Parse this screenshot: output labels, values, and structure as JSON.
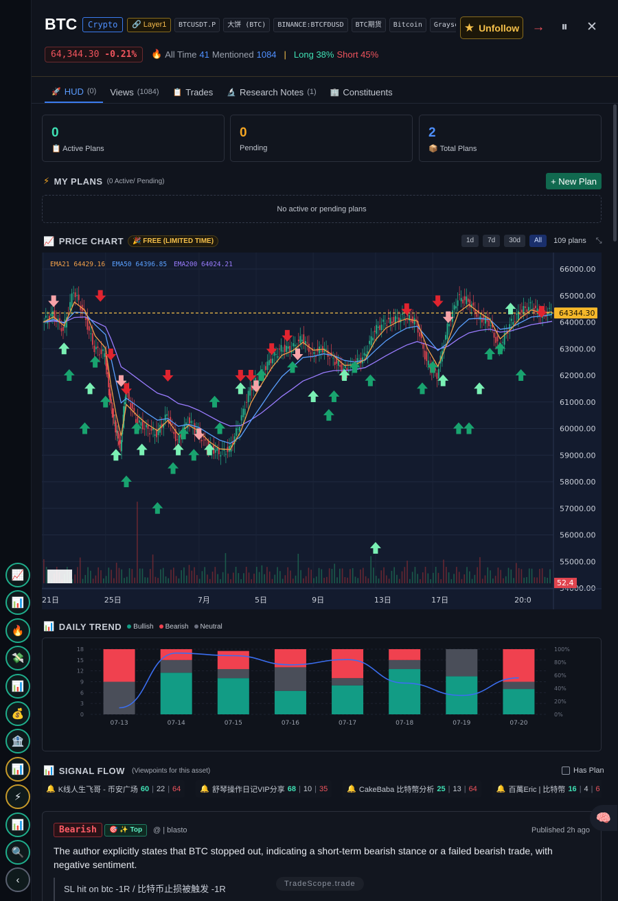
{
  "header": {
    "ticker": "BTC",
    "badge_type": "Crypto",
    "badge_sector": "Layer1",
    "tags": [
      "BTCUSDT.P",
      "大饼 (BTC)",
      "BINANCE:BTCFDUSD",
      "BTC期货",
      "Bitcoin",
      "Graysc"
    ],
    "unfollow_label": "Unfollow",
    "price": "64,344.30",
    "change": "-0.21%",
    "all_time_label": "All Time",
    "all_time_value": "41",
    "mentioned_label": "Mentioned",
    "mentioned_value": "1084",
    "long_label": "Long 38%",
    "short_label": "Short 45%"
  },
  "tabs": [
    {
      "label": "HUD",
      "count": "(0)"
    },
    {
      "label": "Views",
      "count": "(1084)"
    },
    {
      "label": "Trades",
      "count": ""
    },
    {
      "label": "Research Notes",
      "count": "(1)"
    },
    {
      "label": "Constituents",
      "count": ""
    }
  ],
  "cards": [
    {
      "value": "0",
      "label": "Active Plans",
      "color": "#3fe0b4"
    },
    {
      "value": "0",
      "label": "Pending",
      "color": "#f5a623"
    },
    {
      "value": "2",
      "label": "Total Plans",
      "color": "#4f90ff"
    }
  ],
  "plans": {
    "title": "MY PLANS",
    "subtitle": "(0 Active/ Pending)",
    "new_plan_label": "+ New Plan",
    "empty_text": "No active or pending plans"
  },
  "price_chart": {
    "title": "PRICE CHART",
    "badge": "FREE (LIMITED TIME)",
    "ranges": [
      "1d",
      "7d",
      "30d",
      "All"
    ],
    "active_range": "All",
    "plans_count": "109 plans"
  },
  "chart_data": [
    {
      "type": "candlestick",
      "ema_labels": [
        {
          "name": "EMA21",
          "value": "64429.16",
          "color": "#f2a04a"
        },
        {
          "name": "EMA50",
          "value": "64396.85",
          "color": "#5aa0ff"
        },
        {
          "name": "EMA200",
          "value": "64024.21",
          "color": "#9a7cff"
        }
      ],
      "y_ticks": [
        "66000.00",
        "65000.00",
        "64000.00",
        "63000.00",
        "62000.00",
        "61000.00",
        "60000.00",
        "59000.00",
        "58000.00",
        "57000.00",
        "56000.00",
        "55000.00",
        "54000.00"
      ],
      "ylim": [
        54000,
        66500
      ],
      "x_ticks": [
        "21日",
        "25日",
        "7月",
        "5日",
        "9日",
        "13日",
        "17日",
        "20:0"
      ],
      "current_price_label": "64344.30",
      "current_price": 64344.3,
      "volume_label": "52.4",
      "price_path": [
        [
          0,
          64000
        ],
        [
          2,
          64300
        ],
        [
          4,
          63700
        ],
        [
          6,
          65200
        ],
        [
          8,
          64300
        ],
        [
          10,
          63000
        ],
        [
          12,
          62800
        ],
        [
          13,
          61000
        ],
        [
          14,
          60000
        ],
        [
          15,
          59300
        ],
        [
          16,
          61500
        ],
        [
          18,
          60300
        ],
        [
          20,
          60000
        ],
        [
          22,
          59800
        ],
        [
          24,
          60500
        ],
        [
          26,
          59500
        ],
        [
          28,
          60300
        ],
        [
          30,
          59800
        ],
        [
          32,
          59300
        ],
        [
          34,
          59100
        ],
        [
          36,
          59200
        ],
        [
          38,
          60200
        ],
        [
          40,
          61500
        ],
        [
          42,
          62000
        ],
        [
          44,
          62600
        ],
        [
          46,
          63000
        ],
        [
          48,
          63000
        ],
        [
          50,
          63400
        ],
        [
          52,
          62800
        ],
        [
          54,
          63000
        ],
        [
          56,
          62600
        ],
        [
          58,
          62200
        ],
        [
          60,
          62400
        ],
        [
          62,
          62700
        ],
        [
          64,
          63700
        ],
        [
          66,
          64000
        ],
        [
          68,
          64100
        ],
        [
          70,
          64200
        ],
        [
          72,
          64000
        ],
        [
          74,
          62500
        ],
        [
          76,
          62000
        ],
        [
          78,
          63800
        ],
        [
          80,
          64900
        ],
        [
          82,
          64800
        ],
        [
          84,
          64200
        ],
        [
          86,
          64000
        ],
        [
          88,
          63000
        ],
        [
          90,
          63900
        ],
        [
          92,
          64400
        ],
        [
          94,
          64600
        ],
        [
          96,
          64300
        ],
        [
          98,
          64400
        ]
      ],
      "signals_up": [
        [
          4,
          63000
        ],
        [
          5,
          62000
        ],
        [
          8,
          60000
        ],
        [
          9,
          61500
        ],
        [
          10,
          62500
        ],
        [
          12,
          61000
        ],
        [
          14,
          59000
        ],
        [
          16,
          58000
        ],
        [
          18,
          60000
        ],
        [
          19,
          59200
        ],
        [
          22,
          57000
        ],
        [
          25,
          58500
        ],
        [
          26,
          59200
        ],
        [
          27,
          59800
        ],
        [
          29,
          59000
        ],
        [
          32,
          59200
        ],
        [
          33,
          61000
        ],
        [
          34,
          60000
        ],
        [
          38,
          61500
        ],
        [
          42,
          62000
        ],
        [
          48,
          62300
        ],
        [
          52,
          61200
        ],
        [
          55,
          60500
        ],
        [
          56,
          61200
        ],
        [
          58,
          62000
        ],
        [
          60,
          62300
        ],
        [
          63,
          61800
        ],
        [
          64,
          55500
        ],
        [
          73,
          61500
        ],
        [
          75,
          62300
        ],
        [
          77,
          61800
        ],
        [
          80,
          60000
        ],
        [
          82,
          60000
        ],
        [
          84,
          61500
        ],
        [
          86,
          62800
        ],
        [
          88,
          63000
        ],
        [
          90,
          64500
        ],
        [
          92,
          62000
        ]
      ],
      "signals_down": [
        [
          2,
          64800
        ],
        [
          11,
          65000
        ],
        [
          13,
          62800
        ],
        [
          15,
          61800
        ],
        [
          16,
          61500
        ],
        [
          24,
          62000
        ],
        [
          30,
          59800
        ],
        [
          38,
          62000
        ],
        [
          40,
          62000
        ],
        [
          41,
          61600
        ],
        [
          44,
          63000
        ],
        [
          47,
          63500
        ],
        [
          49,
          62800
        ],
        [
          70,
          64500
        ],
        [
          76,
          64800
        ],
        [
          78,
          64200
        ],
        [
          96,
          64400
        ]
      ]
    },
    {
      "type": "bar",
      "title": "DAILY TREND",
      "legend": [
        "Bullish",
        "Bearish",
        "Neutral"
      ],
      "colors": {
        "Bullish": "#129c85",
        "Bearish": "#f0414f",
        "Neutral": "#4a4e59",
        "line": "#3b6ef0"
      },
      "categories": [
        "07-13",
        "07-14",
        "07-15",
        "07-16",
        "07-17",
        "07-18",
        "07-19",
        "07-20"
      ],
      "y_ticks_left": [
        "18",
        "15",
        "12",
        "9",
        "6",
        "3",
        "0"
      ],
      "y_ticks_right": [
        "100%",
        "80%",
        "60%",
        "40%",
        "20%",
        "0%"
      ],
      "ylim": [
        0,
        18
      ],
      "series": [
        {
          "name": "Bullish",
          "values": [
            0,
            11.5,
            10,
            6.5,
            8,
            12.5,
            10.5,
            7
          ]
        },
        {
          "name": "Neutral",
          "values": [
            9,
            3.5,
            2.5,
            6.5,
            2,
            2.5,
            7.5,
            2
          ]
        },
        {
          "name": "Bearish",
          "values": [
            9,
            3,
            5,
            5,
            8,
            3,
            0,
            9
          ]
        }
      ],
      "bullish_ratio": [
        10,
        94,
        90,
        76,
        84,
        48,
        29,
        56
      ]
    }
  ],
  "signal_flow": {
    "title": "SIGNAL FLOW",
    "subtitle": "(Viewpoints for this asset)",
    "has_plan_label": "Has Plan",
    "feed": [
      {
        "name": "K线人生飞哥 - 币安广场",
        "a": "60",
        "b": "22",
        "c": "64"
      },
      {
        "name": "舒琴操作日记VIP分享",
        "a": "68",
        "b": "10",
        "c": "35"
      },
      {
        "name": "CakeBaba 比特幣分析",
        "a": "25",
        "b": "13",
        "c": "64"
      },
      {
        "name": "百萬Eric | 比特幣",
        "a": "16",
        "b": "4",
        "c": "6"
      }
    ],
    "post": {
      "sentiment": "Bearish",
      "top_badge": "Top",
      "author": "@ | blasto",
      "published": "Published 2h ago",
      "summary": "The author explicitly states that BTC stopped out, indicating a short-term bearish stance or a failed bearish trade, with negative sentiment.",
      "quote": "SL hit on btc -1R / 比特币止损被触发 -1R"
    }
  },
  "watermark": "TradeScope.trade"
}
